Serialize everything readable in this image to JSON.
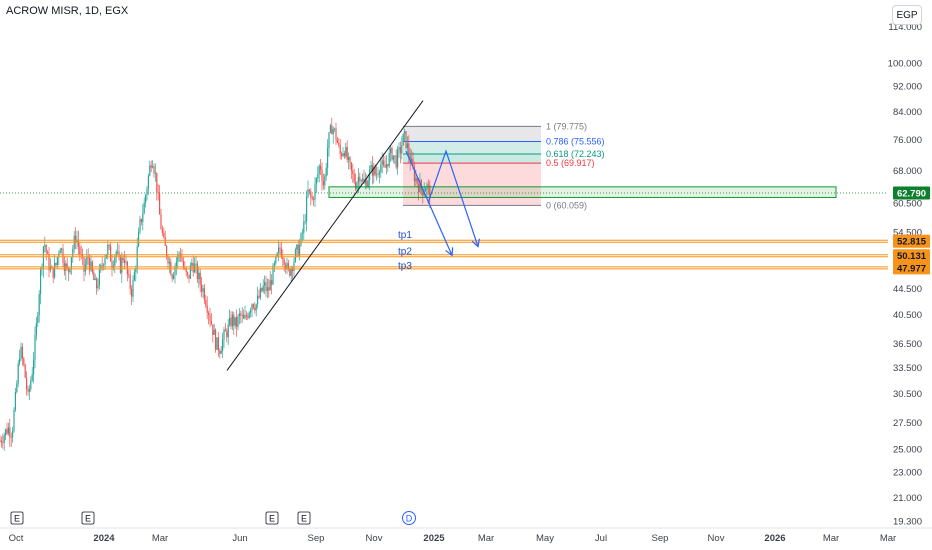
{
  "header": {
    "symbol_title": "ACROW MISR, 1D, EGX",
    "currency_button": "EGP"
  },
  "colors": {
    "up": "#26a69a",
    "down": "#ef5350",
    "trend_line": "#131722",
    "support_zone": "#0e9a2f",
    "target_line": "#f7931a",
    "arrow": "#2962ff",
    "last_price": "#0e7f2c"
  },
  "chart_data": {
    "type": "candlestick",
    "title": "ACROW MISR, 1D, EGX",
    "y_scale": "log",
    "ylim": [
      19.33,
      114.0
    ],
    "y_tick_labels": [
      "114.000",
      "100.000",
      "92.000",
      "84.000",
      "76.000",
      "68.000",
      "60.500",
      "54.500",
      "44.500",
      "40.500",
      "36.500",
      "33.500",
      "30.500",
      "27.500",
      "25.000",
      "23.000",
      "21.000",
      "19.300"
    ],
    "x_tick_labels": [
      {
        "label": "Oct",
        "bold": false
      },
      {
        "label": "2024",
        "bold": true
      },
      {
        "label": "Mar",
        "bold": false
      },
      {
        "label": "Jun",
        "bold": false
      },
      {
        "label": "Sep",
        "bold": false
      },
      {
        "label": "Nov",
        "bold": false
      },
      {
        "label": "2025",
        "bold": true
      },
      {
        "label": "Mar",
        "bold": false
      },
      {
        "label": "May",
        "bold": false
      },
      {
        "label": "Jul",
        "bold": false
      },
      {
        "label": "Sep",
        "bold": false
      },
      {
        "label": "Nov",
        "bold": false
      },
      {
        "label": "2026",
        "bold": true
      },
      {
        "label": "Mar",
        "bold": false
      },
      {
        "label": "Mar",
        "bold": false
      }
    ],
    "price_path": [
      [
        0,
        25.8
      ],
      [
        4,
        26.4
      ],
      [
        8,
        27.0
      ],
      [
        12,
        26.6
      ],
      [
        16,
        30.5
      ],
      [
        20,
        36.0
      ],
      [
        24,
        33.5
      ],
      [
        28,
        30.0
      ],
      [
        32,
        33.0
      ],
      [
        36,
        38.0
      ],
      [
        40,
        46.0
      ],
      [
        44,
        53.0
      ],
      [
        48,
        49.0
      ],
      [
        52,
        47.0
      ],
      [
        56,
        48.5
      ],
      [
        60,
        52.5
      ],
      [
        64,
        49.0
      ],
      [
        68,
        47.0
      ],
      [
        72,
        51.0
      ],
      [
        76,
        54.0
      ],
      [
        80,
        50.5
      ],
      [
        84,
        47.5
      ],
      [
        88,
        50.0
      ],
      [
        92,
        47.0
      ],
      [
        96,
        44.5
      ],
      [
        100,
        47.0
      ],
      [
        104,
        50.0
      ],
      [
        108,
        51.5
      ],
      [
        112,
        49.0
      ],
      [
        116,
        51.0
      ],
      [
        120,
        48.0
      ],
      [
        124,
        50.5
      ],
      [
        128,
        46.0
      ],
      [
        132,
        44.0
      ],
      [
        136,
        49.0
      ],
      [
        140,
        56.0
      ],
      [
        144,
        60.0
      ],
      [
        148,
        66.0
      ],
      [
        152,
        72.0
      ],
      [
        156,
        66.0
      ],
      [
        160,
        57.0
      ],
      [
        164,
        52.0
      ],
      [
        168,
        50.0
      ],
      [
        172,
        47.0
      ],
      [
        176,
        49.0
      ],
      [
        180,
        51.0
      ],
      [
        184,
        47.5
      ],
      [
        188,
        46.0
      ],
      [
        192,
        49.0
      ],
      [
        196,
        47.5
      ],
      [
        200,
        45.5
      ],
      [
        204,
        44.0
      ],
      [
        208,
        41.5
      ],
      [
        212,
        39.0
      ],
      [
        216,
        36.5
      ],
      [
        220,
        36.0
      ],
      [
        224,
        37.5
      ],
      [
        228,
        38.5
      ],
      [
        232,
        40.0
      ],
      [
        236,
        39.0
      ],
      [
        240,
        40.5
      ],
      [
        244,
        39.5
      ],
      [
        248,
        41.0
      ],
      [
        252,
        42.5
      ],
      [
        256,
        42.0
      ],
      [
        260,
        43.5
      ],
      [
        264,
        45.0
      ],
      [
        268,
        44.0
      ],
      [
        272,
        46.5
      ],
      [
        276,
        49.0
      ],
      [
        280,
        51.5
      ],
      [
        284,
        50.0
      ],
      [
        288,
        47.0
      ],
      [
        292,
        48.5
      ],
      [
        296,
        50.5
      ],
      [
        300,
        52.0
      ],
      [
        304,
        56.0
      ],
      [
        308,
        63.0
      ],
      [
        312,
        61.0
      ],
      [
        316,
        65.0
      ],
      [
        320,
        70.0
      ],
      [
        324,
        64.0
      ],
      [
        328,
        75.0
      ],
      [
        332,
        80.0
      ],
      [
        336,
        77.0
      ],
      [
        340,
        72.0
      ],
      [
        344,
        74.0
      ],
      [
        348,
        70.0
      ],
      [
        352,
        67.0
      ],
      [
        356,
        65.0
      ],
      [
        360,
        67.5
      ],
      [
        364,
        64.5
      ],
      [
        368,
        66.5
      ],
      [
        372,
        68.5
      ],
      [
        376,
        67.0
      ],
      [
        380,
        70.0
      ],
      [
        384,
        68.0
      ],
      [
        388,
        71.0
      ],
      [
        392,
        72.5
      ],
      [
        396,
        70.5
      ],
      [
        400,
        73.0
      ],
      [
        404,
        77.0
      ],
      [
        406,
        75.5
      ],
      [
        410,
        71.0
      ],
      [
        414,
        67.0
      ],
      [
        418,
        65.0
      ],
      [
        422,
        63.5
      ],
      [
        426,
        64.5
      ],
      [
        430,
        62.79
      ]
    ],
    "fibonacci": [
      {
        "ratio": "1",
        "value": 79.775,
        "label": "1 (79.775)",
        "color": "#787b86"
      },
      {
        "ratio": "0.786",
        "value": 75.556,
        "label": "0.786 (75.556)",
        "color": "#2962ff"
      },
      {
        "ratio": "0.618",
        "value": 72.243,
        "label": "0.618 (72.243)",
        "color": "#089981"
      },
      {
        "ratio": "0.5",
        "value": 69.917,
        "label": "0.5 (69.917)",
        "color": "#f23645"
      },
      {
        "ratio": "0",
        "value": 60.059,
        "label": "0 (60.059)",
        "color": "#787b86"
      }
    ],
    "support_zone": {
      "low": 61.8,
      "high": 64.2
    },
    "targets": [
      {
        "name": "tp1",
        "value": 52.815
      },
      {
        "name": "tp2",
        "value": 50.131
      },
      {
        "name": "tp3",
        "value": 47.977
      }
    ],
    "last_price": 62.79,
    "trend_line": {
      "from": {
        "x_day": 205,
        "y": 33.2
      },
      "to": {
        "x_day": 400,
        "y": 87.5
      }
    },
    "arrows": [
      {
        "from": {
          "x_day": 404,
          "y": 75.5
        },
        "via": {
          "x_day": 420,
          "y": 60.6
        },
        "mid": {
          "x_day": 432,
          "y": 73.0
        },
        "to": {
          "x_day": 460,
          "y": 52.2
        }
      },
      {
        "from": {
          "x_day": 420,
          "y": 60.6
        },
        "to": {
          "x_day": 445,
          "y": 49.8
        }
      }
    ],
    "events": [
      {
        "x_day": 2,
        "label": "E",
        "kind": "earnings"
      },
      {
        "x_day": 72,
        "label": "E",
        "kind": "earnings"
      },
      {
        "x_day": 246,
        "label": "E",
        "kind": "earnings"
      },
      {
        "x_day": 276,
        "label": "E",
        "kind": "earnings"
      },
      {
        "x_day": 391,
        "label": "D",
        "kind": "dividend"
      }
    ]
  },
  "price_tags": {
    "last": "62.790",
    "tp1": "52.815",
    "tp2": "50.131",
    "tp3": "47.977"
  }
}
